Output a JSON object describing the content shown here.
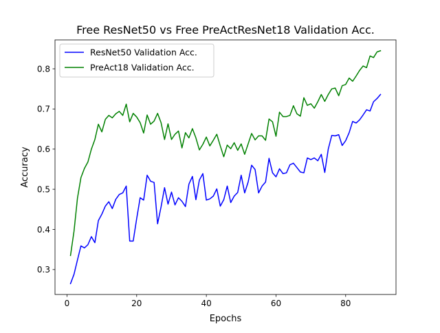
{
  "chart_data": {
    "type": "line",
    "title": "Free ResNet50 vs Free PreActResNet18 Validation Acc.",
    "xlabel": "Epochs",
    "ylabel": "Accuracy",
    "xlim": [
      -3.45,
      94.45
    ],
    "ylim": [
      0.238,
      0.872
    ],
    "xticks": [
      0,
      20,
      40,
      60,
      80
    ],
    "xtick_labels": [
      "0",
      "20",
      "40",
      "60",
      "80"
    ],
    "yticks": [
      0.3,
      0.4,
      0.5,
      0.6,
      0.7,
      0.8
    ],
    "ytick_labels": [
      "0.3",
      "0.4",
      "0.5",
      "0.6",
      "0.7",
      "0.8"
    ],
    "grid": false,
    "legend_position": "upper left",
    "x": [
      1,
      2,
      3,
      4,
      5,
      6,
      7,
      8,
      9,
      10,
      11,
      12,
      13,
      14,
      15,
      16,
      17,
      18,
      19,
      20,
      21,
      22,
      23,
      24,
      25,
      26,
      27,
      28,
      29,
      30,
      31,
      32,
      33,
      34,
      35,
      36,
      37,
      38,
      39,
      40,
      41,
      42,
      43,
      44,
      45,
      46,
      47,
      48,
      49,
      50,
      51,
      52,
      53,
      54,
      55,
      56,
      57,
      58,
      59,
      60,
      61,
      62,
      63,
      64,
      65,
      66,
      67,
      68,
      69,
      70,
      71,
      72,
      73,
      74,
      75,
      76,
      77,
      78,
      79,
      80,
      81,
      82,
      83,
      84,
      85,
      86,
      87,
      88,
      89,
      90
    ],
    "series": [
      {
        "name": "ResNet50 Validation Acc.",
        "color": "#0000ff",
        "values": [
          0.265,
          0.288,
          0.324,
          0.359,
          0.354,
          0.362,
          0.382,
          0.367,
          0.422,
          0.438,
          0.458,
          0.469,
          0.452,
          0.475,
          0.487,
          0.491,
          0.508,
          0.371,
          0.371,
          0.427,
          0.479,
          0.473,
          0.535,
          0.52,
          0.517,
          0.414,
          0.456,
          0.504,
          0.463,
          0.493,
          0.461,
          0.479,
          0.47,
          0.457,
          0.513,
          0.532,
          0.474,
          0.523,
          0.539,
          0.473,
          0.476,
          0.483,
          0.501,
          0.458,
          0.474,
          0.508,
          0.467,
          0.483,
          0.492,
          0.535,
          0.491,
          0.518,
          0.56,
          0.549,
          0.491,
          0.508,
          0.518,
          0.577,
          0.541,
          0.531,
          0.551,
          0.539,
          0.541,
          0.561,
          0.565,
          0.554,
          0.543,
          0.541,
          0.578,
          0.574,
          0.578,
          0.571,
          0.587,
          0.542,
          0.6,
          0.634,
          0.633,
          0.636,
          0.609,
          0.621,
          0.641,
          0.669,
          0.665,
          0.673,
          0.685,
          0.698,
          0.695,
          0.718,
          0.726,
          0.736
        ]
      },
      {
        "name": "PreAct18 Validation Acc.",
        "color": "#008000",
        "values": [
          0.335,
          0.395,
          0.478,
          0.529,
          0.552,
          0.568,
          0.6,
          0.624,
          0.662,
          0.643,
          0.674,
          0.684,
          0.678,
          0.688,
          0.694,
          0.684,
          0.712,
          0.668,
          0.689,
          0.68,
          0.666,
          0.64,
          0.685,
          0.662,
          0.67,
          0.689,
          0.666,
          0.624,
          0.663,
          0.624,
          0.637,
          0.645,
          0.603,
          0.641,
          0.628,
          0.651,
          0.628,
          0.598,
          0.612,
          0.63,
          0.608,
          0.622,
          0.637,
          0.608,
          0.581,
          0.61,
          0.601,
          0.616,
          0.597,
          0.613,
          0.587,
          0.613,
          0.639,
          0.623,
          0.633,
          0.633,
          0.622,
          0.675,
          0.668,
          0.632,
          0.692,
          0.681,
          0.681,
          0.684,
          0.708,
          0.688,
          0.682,
          0.728,
          0.709,
          0.713,
          0.702,
          0.718,
          0.736,
          0.719,
          0.736,
          0.75,
          0.752,
          0.733,
          0.758,
          0.761,
          0.777,
          0.769,
          0.782,
          0.796,
          0.807,
          0.803,
          0.832,
          0.828,
          0.842,
          0.845
        ]
      }
    ]
  }
}
